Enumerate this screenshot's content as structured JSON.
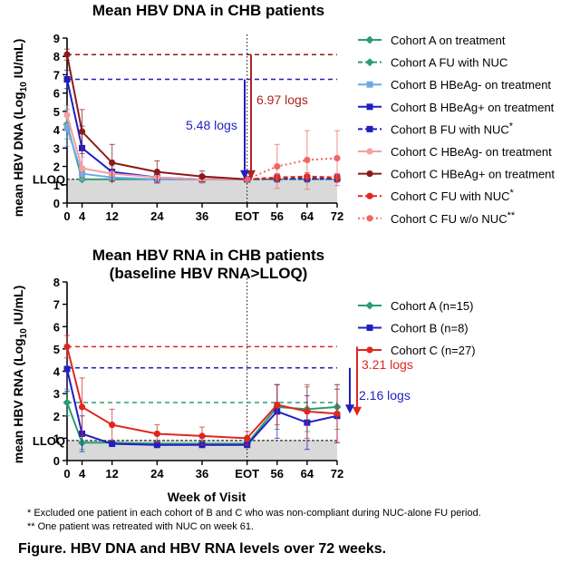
{
  "chart_data": [
    {
      "type": "line",
      "title": "Mean HBV DNA in CHB patients",
      "ylabel_pre": "mean HBV DNA (Log",
      "ylabel_sub": "10",
      "ylabel_post": " IU/mL)",
      "ylim": [
        0,
        9
      ],
      "yticks": [
        "0",
        "1",
        "2",
        "3",
        "4",
        "5",
        "6",
        "7",
        "8",
        "9"
      ],
      "lloq_label": "LLOQ",
      "lloq_value": 1.3,
      "x_categories": [
        "0",
        "4",
        "12",
        "24",
        "36",
        "EOT",
        "56",
        "64",
        "72"
      ],
      "x_positions": [
        0,
        4,
        12,
        24,
        36,
        48,
        56,
        64,
        72
      ],
      "eot_week": 48,
      "legend_position": "right",
      "series": [
        {
          "name": "Cohort A on treatment",
          "color": "#2a9d72",
          "marker": "diamond",
          "dash": "solid",
          "x": [
            0,
            4,
            12,
            24,
            36,
            48
          ],
          "y": [
            4.3,
            1.3,
            1.3,
            1.3,
            1.3,
            1.3
          ],
          "err": [
            0.8,
            0.1,
            0.1,
            0.1,
            0.1,
            0.1
          ]
        },
        {
          "name": "Cohort A FU with NUC",
          "color": "#2a9d72",
          "marker": "diamond",
          "dash": "dashed",
          "x": [
            48,
            56,
            64,
            72
          ],
          "y": [
            1.3,
            1.3,
            1.3,
            1.3
          ],
          "err": [
            0.1,
            0.1,
            0.1,
            0.1
          ]
        },
        {
          "name": "Cohort B HBeAg- on treatment",
          "color": "#6fa8e6",
          "marker": "square",
          "dash": "solid",
          "x": [
            0,
            4,
            12,
            24,
            36,
            48
          ],
          "y": [
            4.1,
            1.6,
            1.4,
            1.3,
            1.3,
            1.3
          ],
          "err": [
            1.0,
            0.4,
            0.2,
            0.1,
            0.1,
            0.1
          ]
        },
        {
          "name": "Cohort B HBeAg+ on treatment",
          "color": "#1f1fc0",
          "marker": "square",
          "dash": "solid",
          "x": [
            0,
            4,
            12,
            24,
            36,
            48
          ],
          "y": [
            6.75,
            3.0,
            1.7,
            1.4,
            1.3,
            1.3
          ],
          "err": [
            0.5,
            1.2,
            0.5,
            0.3,
            0.2,
            0.1
          ]
        },
        {
          "name": "Cohort B FU with NUC",
          "name_note": "*",
          "color": "#1f1fc0",
          "marker": "square",
          "dash": "dashed",
          "x": [
            48,
            56,
            64,
            72
          ],
          "y": [
            1.3,
            1.35,
            1.35,
            1.35
          ],
          "err": [
            0.1,
            0.2,
            0.2,
            0.2
          ]
        },
        {
          "name": "Cohort C HBeAg- on treatment",
          "color": "#f4a0a0",
          "marker": "circle",
          "dash": "solid",
          "x": [
            0,
            4,
            12,
            24,
            36,
            48
          ],
          "y": [
            4.8,
            1.9,
            1.6,
            1.4,
            1.3,
            1.3
          ],
          "err": [
            0.5,
            0.6,
            0.4,
            0.3,
            0.2,
            0.1
          ]
        },
        {
          "name": "Cohort C HBeAg+ on treatment",
          "color": "#8b1a1a",
          "marker": "circle",
          "dash": "solid",
          "x": [
            0,
            4,
            12,
            24,
            36,
            48
          ],
          "y": [
            8.1,
            3.9,
            2.2,
            1.7,
            1.45,
            1.3
          ],
          "err": [
            0.3,
            1.2,
            1.0,
            0.6,
            0.3,
            0.1
          ]
        },
        {
          "name": "Cohort C FU with NUC",
          "name_note": "*",
          "color": "#e0261f",
          "marker": "circle",
          "dash": "dashed",
          "x": [
            48,
            56,
            64,
            72
          ],
          "y": [
            1.3,
            1.4,
            1.45,
            1.4
          ],
          "err": [
            0.1,
            0.2,
            0.2,
            0.2
          ]
        },
        {
          "name": "Cohort C FU w/o NUC",
          "name_note": "**",
          "color": "#f06666",
          "marker": "circle",
          "dash": "dotted",
          "x": [
            48,
            56,
            64,
            72
          ],
          "y": [
            1.3,
            2.0,
            2.35,
            2.45
          ],
          "err": [
            0.1,
            1.2,
            1.6,
            1.5
          ]
        }
      ],
      "reference_lines": [
        {
          "y": 8.1,
          "color": "#8b1a1a"
        },
        {
          "y": 6.75,
          "color": "#1f1fc0"
        }
      ],
      "annotations": [
        {
          "text": "6.97 logs",
          "color": "#b22222"
        },
        {
          "text": "5.48 logs",
          "color": "#1f1fc0"
        }
      ]
    },
    {
      "type": "line",
      "title": "Mean HBV RNA in CHB patients",
      "subtitle": "(baseline HBV RNA>LLOQ)",
      "ylabel_pre": "mean HBV RNA (Log",
      "ylabel_sub": "10",
      "ylabel_post": " IU/mL)",
      "xlabel": "Week of Visit",
      "ylim": [
        0,
        8
      ],
      "yticks": [
        "0",
        "1",
        "2",
        "3",
        "4",
        "5",
        "6",
        "7",
        "8"
      ],
      "lloq_label": "LLOQ",
      "lloq_value": 0.9,
      "x_categories": [
        "0",
        "4",
        "12",
        "24",
        "36",
        "EOT",
        "56",
        "64",
        "72"
      ],
      "x_positions": [
        0,
        4,
        12,
        24,
        36,
        48,
        56,
        64,
        72
      ],
      "eot_week": 48,
      "legend_position": "right",
      "series": [
        {
          "name": "Cohort A (n=15)",
          "color": "#2a9d72",
          "marker": "diamond",
          "x": [
            0,
            4,
            12,
            24,
            36,
            48,
            56,
            64,
            72
          ],
          "y": [
            2.6,
            0.8,
            0.8,
            0.75,
            0.75,
            0.75,
            2.4,
            2.3,
            2.4
          ],
          "err": [
            0.6,
            0.3,
            0.1,
            0.1,
            0.1,
            0.1,
            1.0,
            1.0,
            1.0
          ]
        },
        {
          "name": "Cohort B (n=8)",
          "color": "#1f1fc0",
          "marker": "square",
          "x": [
            0,
            4,
            12,
            24,
            36,
            48,
            56,
            64,
            72
          ],
          "y": [
            4.1,
            1.2,
            0.75,
            0.7,
            0.7,
            0.7,
            2.2,
            1.7,
            2.0
          ],
          "err": [
            1.0,
            0.8,
            0.1,
            0.1,
            0.1,
            0.1,
            1.2,
            1.2,
            1.2
          ]
        },
        {
          "name": "Cohort C (n=27)",
          "color": "#e0261f",
          "marker": "circle",
          "x": [
            0,
            4,
            12,
            24,
            36,
            48,
            56,
            64,
            72
          ],
          "y": [
            5.1,
            2.4,
            1.6,
            1.2,
            1.1,
            1.0,
            2.5,
            2.2,
            2.1
          ],
          "err": [
            0.5,
            1.3,
            0.7,
            0.4,
            0.4,
            0.3,
            0.9,
            1.2,
            1.3
          ]
        }
      ],
      "reference_lines": [
        {
          "y": 5.1,
          "color": "#e0261f"
        },
        {
          "y": 4.15,
          "color": "#1f1fc0"
        },
        {
          "y": 2.6,
          "color": "#2a9d72"
        }
      ],
      "annotations": [
        {
          "text": "3.21 logs",
          "color": "#e0261f"
        },
        {
          "text": "2.16 logs",
          "color": "#1f1fc0"
        }
      ]
    }
  ],
  "footnotes": [
    "* Excluded one patient in each cohort of B and C who was non-compliant during NUC-alone FU period.",
    "** One patient was retreated with NUC  on week 61."
  ],
  "caption": "Figure. HBV DNA and HBV RNA levels over 72 weeks."
}
